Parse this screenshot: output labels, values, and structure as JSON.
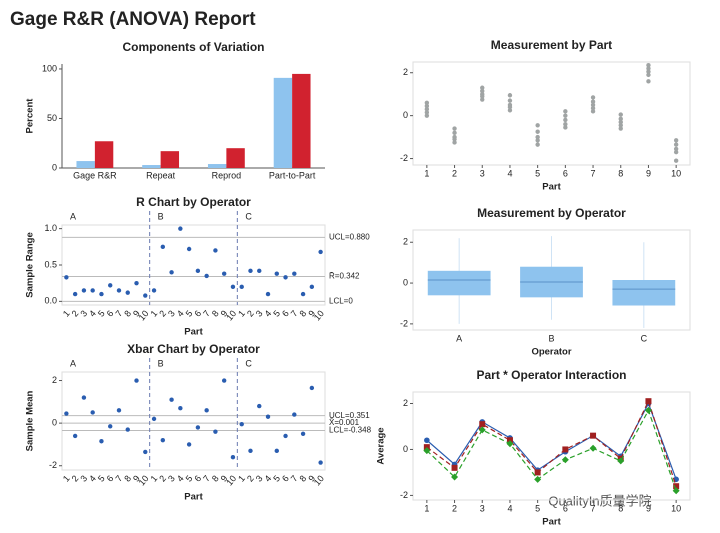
{
  "title": "Gage R&R (ANOVA) Report",
  "watermark": "QualityIn质量学院",
  "chart_data": [
    {
      "type": "bar",
      "title": "Components of Variation",
      "ylabel": "Percent",
      "categories": [
        "Gage R&R",
        "Repeat",
        "Reprod",
        "Part-to-Part"
      ],
      "series": [
        {
          "color": "#8ec3ee",
          "values": [
            7,
            3,
            4,
            91
          ]
        },
        {
          "color": "#d1222f",
          "values": [
            27,
            17,
            20,
            95
          ]
        }
      ],
      "ylim": [
        0,
        105
      ],
      "yticks": [
        0,
        50,
        100
      ]
    },
    {
      "type": "scatter",
      "title": "Measurement by Part",
      "xlabel": "Part",
      "color": "#a0a4a4",
      "x": [
        1,
        1,
        1,
        1,
        1,
        2,
        2,
        2,
        2,
        2,
        3,
        3,
        3,
        3,
        3,
        4,
        4,
        4,
        4,
        4,
        5,
        5,
        5,
        5,
        5,
        6,
        6,
        6,
        6,
        6,
        7,
        7,
        7,
        7,
        7,
        8,
        8,
        8,
        8,
        8,
        9,
        9,
        9,
        9,
        9,
        10,
        10,
        10,
        10,
        10
      ],
      "y": [
        0.6,
        0.45,
        0.3,
        0.15,
        0.0,
        -0.6,
        -0.8,
        -1.0,
        -1.1,
        -1.25,
        1.3,
        1.15,
        1.0,
        0.9,
        0.75,
        0.95,
        0.7,
        0.5,
        0.4,
        0.25,
        -0.45,
        -0.75,
        -1.0,
        -1.15,
        -1.35,
        0.2,
        0.0,
        -0.2,
        -0.4,
        -0.55,
        0.85,
        0.65,
        0.5,
        0.35,
        0.2,
        0.05,
        -0.15,
        -0.3,
        -0.45,
        -0.6,
        2.35,
        2.2,
        2.05,
        1.9,
        1.6,
        -1.15,
        -1.35,
        -1.55,
        -1.7,
        -2.1
      ],
      "xlim": [
        0.5,
        10.5
      ],
      "xticks": [
        1,
        2,
        3,
        4,
        5,
        6,
        7,
        8,
        9,
        10
      ],
      "ylim": [
        -2.3,
        2.5
      ],
      "yticks": [
        -2,
        0,
        2
      ]
    },
    {
      "type": "control",
      "title": "R Chart by Operator",
      "ylabel": "Sample Range",
      "xlabel": "Part",
      "color": "#2a5db0",
      "categories": [
        1,
        2,
        3,
        4,
        5,
        6,
        7,
        8,
        9,
        10
      ],
      "panels": [
        {
          "name": "A",
          "values": [
            0.33,
            0.1,
            0.15,
            0.15,
            0.1,
            0.22,
            0.15,
            0.12,
            0.25,
            0.08
          ]
        },
        {
          "name": "B",
          "values": [
            0.15,
            0.75,
            0.4,
            1.0,
            0.72,
            0.42,
            0.35,
            0.7,
            0.38,
            0.2
          ]
        },
        {
          "name": "C",
          "values": [
            0.2,
            0.42,
            0.42,
            0.1,
            0.38,
            0.33,
            0.38,
            0.1,
            0.2,
            0.68
          ]
        }
      ],
      "control_lines": [
        {
          "value": 0.88,
          "label": "UCL=0.880"
        },
        {
          "value": 0.342,
          "label": "R̄=0.342"
        },
        {
          "value": 0,
          "label": "LCL=0"
        }
      ],
      "ylim": [
        -0.05,
        1.05
      ],
      "yticks": [
        {
          "value": 0,
          "label": "0.0"
        },
        0.5,
        {
          "value": 1,
          "label": "1.0"
        }
      ]
    },
    {
      "type": "control",
      "title": "Xbar Chart by Operator",
      "ylabel": "Sample Mean",
      "xlabel": "Part",
      "color": "#2a5db0",
      "categories": [
        1,
        2,
        3,
        4,
        5,
        6,
        7,
        8,
        9,
        10
      ],
      "panels": [
        {
          "name": "A",
          "values": [
            0.45,
            -0.6,
            1.2,
            0.5,
            -0.85,
            -0.15,
            0.6,
            -0.3,
            2.0,
            -1.35
          ]
        },
        {
          "name": "B",
          "values": [
            0.2,
            -0.8,
            1.1,
            0.7,
            -1.0,
            -0.2,
            0.6,
            -0.4,
            2.0,
            -1.6
          ]
        },
        {
          "name": "C",
          "values": [
            -0.05,
            -1.3,
            0.8,
            0.3,
            -1.3,
            -0.6,
            0.4,
            -0.5,
            1.65,
            -1.85
          ]
        }
      ],
      "control_lines": [
        {
          "value": 0.351,
          "label": "UCL=0.351"
        },
        {
          "value": 0.001,
          "label": "X̄=0.001"
        },
        {
          "value": -0.348,
          "label": "LCL=-0.348"
        }
      ],
      "ylim": [
        -2.2,
        2.4
      ],
      "yticks": [
        -2,
        0,
        2
      ]
    },
    {
      "type": "box",
      "title": "Measurement by Operator",
      "xlabel": "Operator",
      "color": "#8ec3ee",
      "categories": [
        "A",
        "B",
        "C"
      ],
      "boxes": [
        {
          "min": -2.0,
          "q1": -0.6,
          "median": 0.15,
          "q3": 0.6,
          "max": 2.2
        },
        {
          "min": -1.8,
          "q1": -0.7,
          "median": 0.05,
          "q3": 0.8,
          "max": 2.3
        },
        {
          "min": -2.2,
          "q1": -1.1,
          "median": -0.3,
          "q3": 0.15,
          "max": 2.0
        }
      ],
      "ylim": [
        -2.3,
        2.6
      ],
      "yticks": [
        -2,
        0,
        2
      ]
    },
    {
      "type": "line",
      "title": "Part * Operator Interaction",
      "ylabel": "Average",
      "xlabel": "Part",
      "x": [
        1,
        2,
        3,
        4,
        5,
        6,
        7,
        8,
        9,
        10
      ],
      "series": [
        {
          "color": "#2a5db0",
          "marker": "circle",
          "dashed": false,
          "values": [
            0.4,
            -0.65,
            1.2,
            0.5,
            -0.9,
            -0.1,
            0.6,
            -0.3,
            2.0,
            -1.3
          ]
        },
        {
          "color": "#a02020",
          "marker": "square",
          "dashed": true,
          "values": [
            0.1,
            -0.8,
            1.1,
            0.4,
            -1.0,
            0.0,
            0.6,
            -0.4,
            2.1,
            -1.6
          ]
        },
        {
          "color": "#2aa02a",
          "marker": "diamond",
          "dashed": true,
          "values": [
            -0.05,
            -1.2,
            0.85,
            0.25,
            -1.3,
            -0.45,
            0.05,
            -0.5,
            1.7,
            -1.8
          ]
        }
      ],
      "xlim": [
        0.5,
        10.5
      ],
      "xticks": [
        1,
        2,
        3,
        4,
        5,
        6,
        7,
        8,
        9,
        10
      ],
      "ylim": [
        -2.2,
        2.5
      ],
      "yticks": [
        -2,
        0,
        2
      ]
    }
  ]
}
